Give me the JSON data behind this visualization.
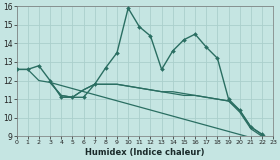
{
  "xlabel": "Humidex (Indice chaleur)",
  "bg_color": "#c5e5e2",
  "grid_color": "#aacfcc",
  "line_color": "#2a6e62",
  "xlim_min": 0,
  "xlim_max": 23,
  "ylim_min": 9,
  "ylim_max": 16,
  "xticks": [
    0,
    1,
    2,
    3,
    4,
    5,
    6,
    7,
    8,
    9,
    10,
    11,
    12,
    13,
    14,
    15,
    16,
    17,
    18,
    19,
    20,
    21,
    22,
    23
  ],
  "yticks": [
    9,
    10,
    11,
    12,
    13,
    14,
    15,
    16
  ],
  "series": [
    {
      "x": [
        0,
        1,
        2,
        3,
        4,
        5,
        6,
        7,
        8,
        9,
        10,
        11,
        12,
        13,
        14,
        15,
        16,
        17,
        18,
        19,
        20,
        21,
        22,
        23
      ],
      "y": [
        12.6,
        12.6,
        12.8,
        12.0,
        11.1,
        11.1,
        11.1,
        11.8,
        12.7,
        13.5,
        15.9,
        14.9,
        14.4,
        12.6,
        13.6,
        14.2,
        14.5,
        13.8,
        13.2,
        11.0,
        10.4,
        9.5,
        9.1,
        8.7
      ],
      "marker": true,
      "lw": 1.0
    },
    {
      "x": [
        0,
        1,
        2,
        3,
        4,
        5,
        6,
        7,
        8,
        9,
        10,
        11,
        12,
        13,
        14,
        15,
        16,
        17,
        18,
        19,
        20,
        21,
        22,
        23
      ],
      "y": [
        12.6,
        12.6,
        12.0,
        11.9,
        11.2,
        11.1,
        11.5,
        11.8,
        11.8,
        11.8,
        11.7,
        11.6,
        11.5,
        11.4,
        11.4,
        11.3,
        11.2,
        11.1,
        11.0,
        10.9,
        10.4,
        9.5,
        9.1,
        8.7
      ],
      "marker": false,
      "lw": 0.9
    },
    {
      "x": [
        3,
        4,
        5,
        6,
        7,
        8,
        9,
        10,
        11,
        12,
        13,
        14,
        15,
        16,
        17,
        18,
        19,
        20,
        21,
        22,
        23
      ],
      "y": [
        11.9,
        11.2,
        11.1,
        11.5,
        11.8,
        11.8,
        11.8,
        11.7,
        11.6,
        11.5,
        11.4,
        11.3,
        11.2,
        11.2,
        11.1,
        11.0,
        10.9,
        10.3,
        9.4,
        9.0,
        8.6
      ],
      "marker": false,
      "lw": 0.9
    },
    {
      "x": [
        3,
        23
      ],
      "y": [
        11.9,
        8.6
      ],
      "marker": false,
      "lw": 0.9
    }
  ]
}
